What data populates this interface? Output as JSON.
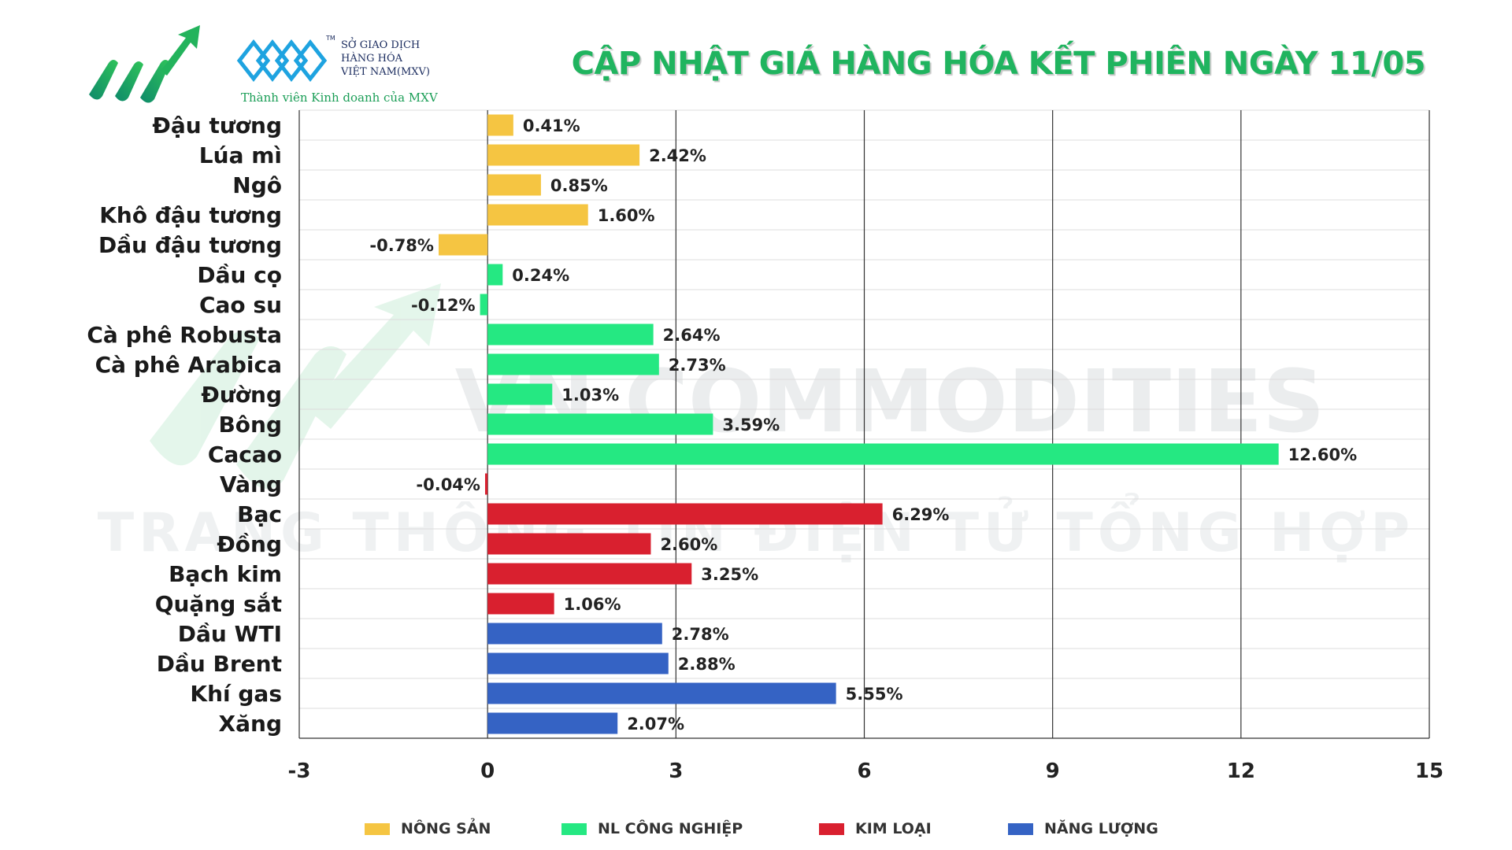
{
  "header": {
    "title": "CẬP NHẬT GIÁ HÀNG HÓA KẾT PHIÊN NGÀY 11/05",
    "exchange_name_line1": "SỞ GIAO DỊCH",
    "exchange_name_line2": "HÀNG HÓA",
    "exchange_name_line3": "VIỆT NAM(MXV)",
    "exchange_tm": "TM",
    "member_text": "Thành viên Kinh doanh của MXV"
  },
  "watermark": {
    "line1": "VN COMMODITIES",
    "line2": "TRANG THÔNG TIN ĐIỆN TỬ TỔNG HỢP"
  },
  "colors": {
    "title": "#20b45f",
    "nong_san": "#f5c542",
    "nl_cong_nghiep": "#25e882",
    "kim_loai": "#d9202f",
    "nang_luong": "#3563c4",
    "grid": "#333333"
  },
  "legend": [
    {
      "label": "NÔNG SẢN",
      "color": "#f5c542"
    },
    {
      "label": "NL CÔNG NGHIỆP",
      "color": "#25e882"
    },
    {
      "label": "KIM LOẠI",
      "color": "#d9202f"
    },
    {
      "label": "NĂNG LƯỢNG",
      "color": "#3563c4"
    }
  ],
  "chart_data": {
    "type": "bar",
    "orientation": "horizontal",
    "title": "CẬP NHẬT GIÁ HÀNG HÓA KẾT PHIÊN NGÀY 11/05",
    "xlim": [
      -3,
      15
    ],
    "xticks": [
      -3,
      0,
      3,
      6,
      9,
      12,
      15
    ],
    "grid": true,
    "legend_position": "bottom",
    "categories": [
      "Đậu tương",
      "Lúa mì",
      "Ngô",
      "Khô đậu tương",
      "Dầu đậu tương",
      "Dầu cọ",
      "Cao su",
      "Cà phê Robusta",
      "Cà phê Arabica",
      "Đường",
      "Bông",
      "Cacao",
      "Vàng",
      "Bạc",
      "Đồng",
      "Bạch kim",
      "Quặng sắt",
      "Dầu WTI",
      "Dầu Brent",
      "Khí gas",
      "Xăng"
    ],
    "values": [
      0.41,
      2.42,
      0.85,
      1.6,
      -0.78,
      0.24,
      -0.12,
      2.64,
      2.73,
      1.03,
      3.59,
      12.6,
      -0.04,
      6.29,
      2.6,
      3.25,
      1.06,
      2.78,
      2.88,
      5.55,
      2.07
    ],
    "labels": [
      "0.41%",
      "2.42%",
      "0.85%",
      "1.60%",
      "-0.78%",
      "0.24%",
      "-0.12%",
      "2.64%",
      "2.73%",
      "1.03%",
      "3.59%",
      "12.60%",
      "-0.04%",
      "6.29%",
      "2.60%",
      "3.25%",
      "1.06%",
      "2.78%",
      "2.88%",
      "5.55%",
      "2.07%"
    ],
    "groups": [
      "NÔNG SẢN",
      "NÔNG SẢN",
      "NÔNG SẢN",
      "NÔNG SẢN",
      "NÔNG SẢN",
      "NL CÔNG NGHIỆP",
      "NL CÔNG NGHIỆP",
      "NL CÔNG NGHIỆP",
      "NL CÔNG NGHIỆP",
      "NL CÔNG NGHIỆP",
      "NL CÔNG NGHIỆP",
      "NL CÔNG NGHIỆP",
      "KIM LOẠI",
      "KIM LOẠI",
      "KIM LOẠI",
      "KIM LOẠI",
      "KIM LOẠI",
      "NĂNG LƯỢNG",
      "NĂNG LƯỢNG",
      "NĂNG LƯỢNG",
      "NĂNG LƯỢNG"
    ]
  }
}
